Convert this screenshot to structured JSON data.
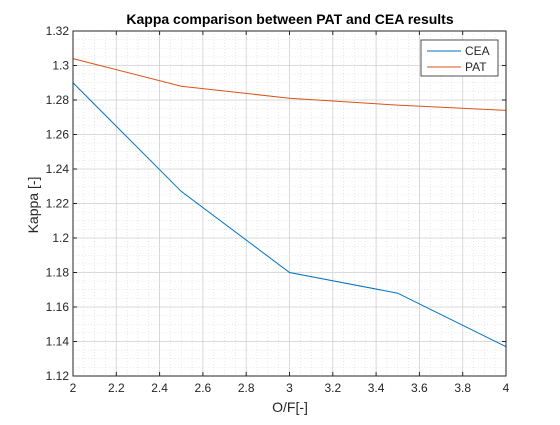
{
  "chart_data": {
    "type": "line",
    "title": "Kappa comparison between PAT and CEA results",
    "xlabel": "O/F[-]",
    "ylabel": "Kappa [-]",
    "xlim": [
      2,
      4
    ],
    "ylim": [
      1.12,
      1.32
    ],
    "x_ticks": [
      2,
      2.2,
      2.4,
      2.6,
      2.8,
      3,
      3.2,
      3.4,
      3.6,
      3.8,
      4
    ],
    "x_tick_labels": [
      "2",
      "2.2",
      "2.4",
      "2.6",
      "2.8",
      "3",
      "3.2",
      "3.4",
      "3.6",
      "3.8",
      "4"
    ],
    "y_ticks": [
      1.12,
      1.14,
      1.16,
      1.18,
      1.2,
      1.22,
      1.24,
      1.26,
      1.28,
      1.3,
      1.32
    ],
    "y_tick_labels": [
      "1.12",
      "1.14",
      "1.16",
      "1.18",
      "1.2",
      "1.22",
      "1.24",
      "1.26",
      "1.28",
      "1.3",
      "1.32"
    ],
    "grid": true,
    "minor_grid": true,
    "legend_position": "top-right",
    "series": [
      {
        "name": "CEA",
        "color": "#0072bd",
        "x": [
          2,
          2.5,
          3,
          3.5,
          4
        ],
        "y": [
          1.29,
          1.227,
          1.18,
          1.168,
          1.137
        ]
      },
      {
        "name": "PAT",
        "color": "#d95319",
        "x": [
          2,
          2.5,
          3,
          3.5,
          4
        ],
        "y": [
          1.304,
          1.288,
          1.281,
          1.277,
          1.274
        ]
      }
    ]
  }
}
